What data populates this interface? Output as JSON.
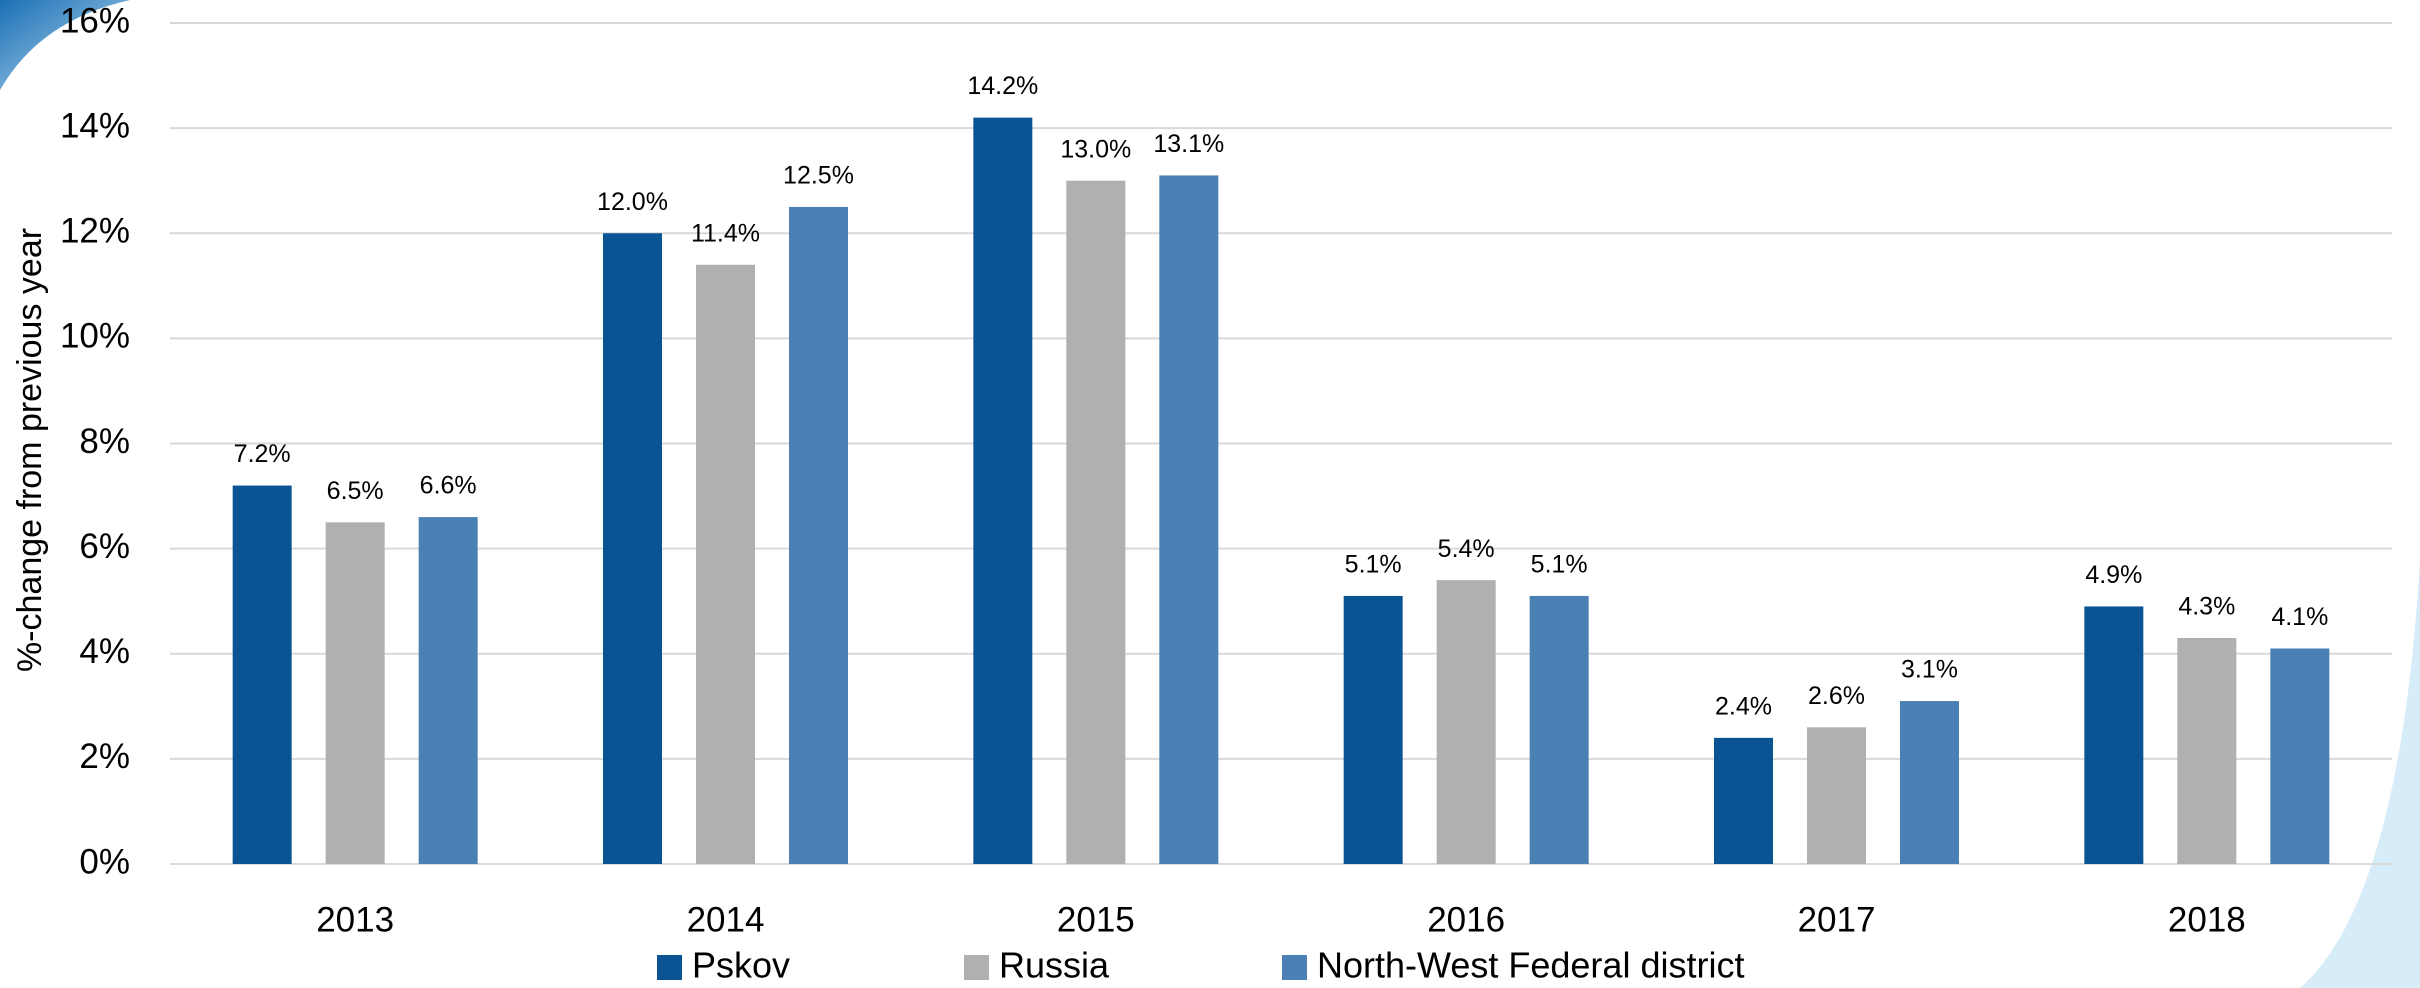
{
  "chart_data": {
    "type": "bar",
    "y_label": "%-change from previous year",
    "categories": [
      "2013",
      "2014",
      "2015",
      "2016",
      "2017",
      "2018"
    ],
    "series": [
      {
        "name": "Pskov",
        "color": "#0b5494",
        "values": [
          7.2,
          12.0,
          14.2,
          5.1,
          2.4,
          4.9
        ],
        "value_labels": [
          "7.2%",
          "12.0%",
          "14.2%",
          "5.1%",
          "2.4%",
          "4.9%"
        ]
      },
      {
        "name": "Russia",
        "color": "#b0b0b0",
        "values": [
          6.5,
          11.4,
          13.0,
          5.4,
          2.6,
          4.3
        ],
        "value_labels": [
          "6.5%",
          "11.4%",
          "13.0%",
          "5.4%",
          "2.6%",
          "4.3%"
        ]
      },
      {
        "name": "North-West Federal district",
        "color": "#4a80b4",
        "values": [
          6.6,
          12.5,
          13.1,
          5.1,
          3.1,
          4.1
        ],
        "value_labels": [
          "6.6%",
          "12.5%",
          "13.1%",
          "5.1%",
          "3.1%",
          "4.1%"
        ]
      }
    ],
    "ylim": [
      0,
      16
    ],
    "yticks": [
      {
        "value": 0,
        "label": "0%"
      },
      {
        "value": 2,
        "label": "2%"
      },
      {
        "value": 4,
        "label": "4%"
      },
      {
        "value": 6,
        "label": "6%"
      },
      {
        "value": 8,
        "label": "8%"
      },
      {
        "value": 10,
        "label": "10%"
      },
      {
        "value": 12,
        "label": "12%"
      },
      {
        "value": 14,
        "label": "14%"
      },
      {
        "value": 16,
        "label": "16%"
      }
    ],
    "grid": true
  }
}
